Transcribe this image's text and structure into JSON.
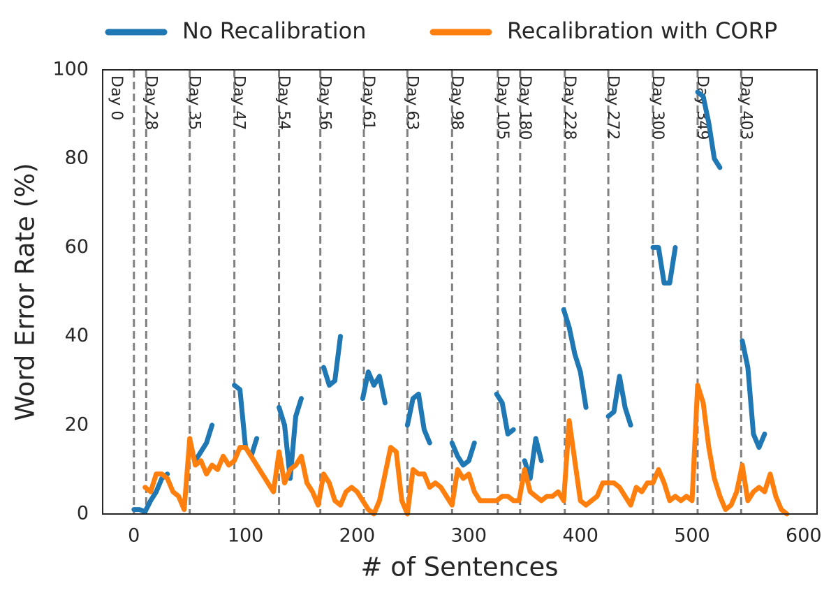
{
  "chart_data": {
    "type": "line",
    "xlabel": "# of Sentences",
    "ylabel": "Word Error Rate (%)",
    "x": [
      0,
      5,
      10,
      15,
      20,
      25,
      30,
      35,
      40,
      45,
      50,
      55,
      60,
      65,
      70,
      75,
      80,
      85,
      90,
      95,
      100,
      105,
      110,
      115,
      120,
      125,
      130,
      135,
      140,
      145,
      150,
      155,
      160,
      165,
      170,
      175,
      180,
      185,
      190,
      195,
      200,
      205,
      210,
      215,
      220,
      225,
      230,
      235,
      240,
      245,
      250,
      255,
      260,
      265,
      270,
      275,
      280,
      285,
      290,
      295,
      300,
      305,
      310,
      315,
      320,
      325,
      330,
      335,
      340,
      345,
      350,
      355,
      360,
      365,
      370,
      375,
      380,
      385,
      390,
      395,
      400,
      405,
      410,
      415,
      420,
      425,
      430,
      435,
      440,
      445,
      450,
      455,
      460,
      465,
      470,
      475,
      480,
      485,
      490,
      495,
      500,
      505,
      510,
      515,
      520,
      525,
      530,
      535,
      540,
      545,
      550,
      555,
      560,
      565,
      570,
      575,
      580,
      585
    ],
    "series": [
      {
        "name": "No Recalibration",
        "color": "#1f77b4",
        "values": [
          1,
          1,
          0.5,
          3,
          5,
          8,
          9,
          null,
          null,
          null,
          null,
          12,
          14,
          16,
          20,
          null,
          null,
          null,
          29,
          28,
          15,
          13,
          17,
          null,
          null,
          null,
          24,
          20,
          8,
          22,
          26,
          null,
          null,
          null,
          33,
          29,
          30,
          40,
          null,
          null,
          null,
          26,
          32,
          29,
          31,
          25,
          null,
          null,
          null,
          20,
          26,
          27,
          19,
          16,
          null,
          null,
          null,
          16,
          13,
          11,
          12,
          16,
          null,
          null,
          null,
          27,
          25,
          18,
          19,
          null,
          12,
          8,
          17,
          12,
          null,
          null,
          null,
          46,
          42,
          36,
          32,
          24,
          null,
          null,
          null,
          22,
          23,
          31,
          24,
          20,
          null,
          null,
          null,
          60,
          60,
          52,
          52,
          60,
          null,
          null,
          null,
          95,
          94,
          88,
          80,
          78,
          null,
          null,
          null,
          39,
          33,
          18,
          15,
          18,
          null,
          null,
          null,
          null
        ]
      },
      {
        "name": "Recalibration with CORP",
        "color": "#ff7f0e",
        "values": [
          null,
          null,
          6,
          5,
          9,
          9,
          8,
          5,
          4,
          1,
          17,
          11,
          12,
          9,
          11,
          10,
          13,
          11,
          12,
          15,
          15,
          13,
          11,
          9,
          7,
          5,
          14,
          7,
          10,
          11,
          13,
          7,
          5,
          2,
          9,
          7,
          3,
          2,
          5,
          6,
          5,
          3,
          1,
          0,
          3,
          9,
          15,
          14,
          3,
          0,
          10,
          9,
          9,
          6,
          7,
          6,
          4,
          2,
          10,
          8,
          9,
          5,
          3,
          3,
          3,
          3,
          4,
          4,
          3,
          3,
          10,
          5,
          4,
          3,
          4,
          4,
          5,
          3,
          21,
          12,
          3,
          2,
          3,
          4,
          7,
          7,
          7,
          6,
          4,
          2,
          6,
          5,
          7,
          7,
          10,
          7,
          3,
          4,
          3,
          4,
          3,
          29,
          25,
          15,
          8,
          4,
          1,
          2,
          5,
          11,
          3,
          5,
          6,
          5,
          9,
          4,
          1,
          0
        ]
      }
    ],
    "annotations": [
      {
        "x": 0,
        "label": "Day 0"
      },
      {
        "x": 11,
        "label": "Day 28"
      },
      {
        "x": 50,
        "label": "Day 35"
      },
      {
        "x": 90,
        "label": "Day 47"
      },
      {
        "x": 130,
        "label": "Day 54"
      },
      {
        "x": 167,
        "label": "Day 56"
      },
      {
        "x": 206,
        "label": "Day 61"
      },
      {
        "x": 245,
        "label": "Day 63"
      },
      {
        "x": 285,
        "label": "Day 98"
      },
      {
        "x": 326,
        "label": "Day 105"
      },
      {
        "x": 346,
        "label": "Day 180"
      },
      {
        "x": 386,
        "label": "Day 228"
      },
      {
        "x": 425,
        "label": "Day 272"
      },
      {
        "x": 465,
        "label": "Day 300"
      },
      {
        "x": 505,
        "label": "Day 349"
      },
      {
        "x": 544,
        "label": "Day 403"
      }
    ],
    "xlim": [
      -28,
      612
    ],
    "xticks": [
      0,
      100,
      200,
      300,
      400,
      500,
      600
    ],
    "ylim": [
      0,
      100
    ],
    "yticks": [
      0,
      20,
      40,
      60,
      80,
      100
    ],
    "grid": false,
    "legend": "top"
  }
}
